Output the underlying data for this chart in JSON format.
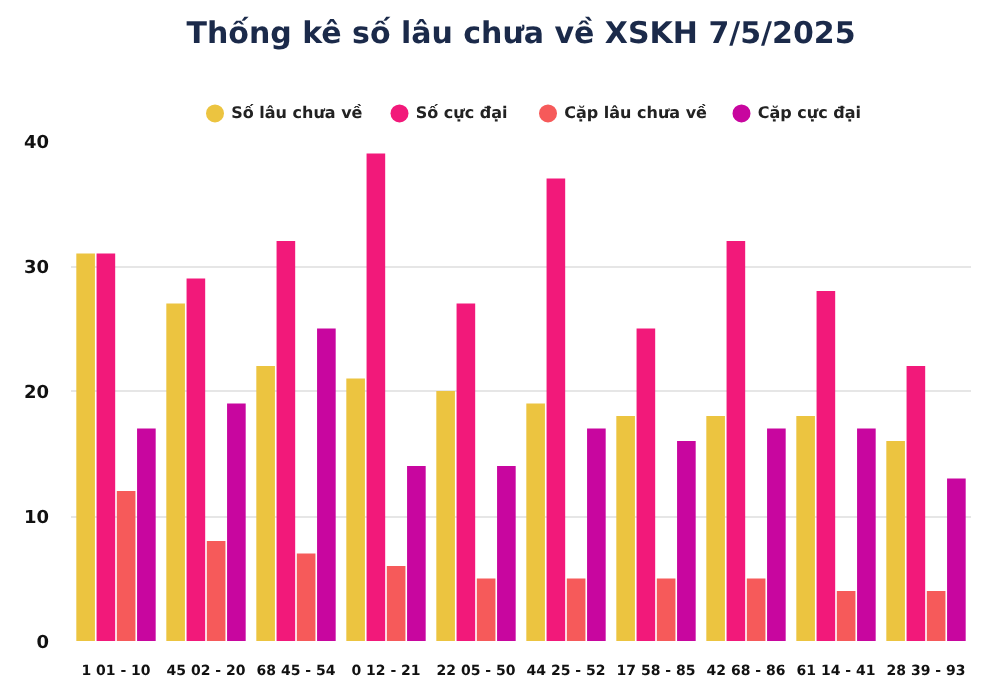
{
  "chart_data": {
    "type": "bar",
    "title": "Thống kê số lâu chưa về XSKH 7/5/2025",
    "categories": [
      "1 01 - 10",
      "45 02 - 20",
      "68 45 - 54",
      "0 12 - 21",
      "22 05 - 50",
      "44 25 - 52",
      "17 58 - 85",
      "42 68 - 86",
      "61 14 - 41",
      "28 39 - 93"
    ],
    "series": [
      {
        "name": "Số lâu chưa về",
        "color": "#ecc440",
        "values": [
          31,
          27,
          22,
          21,
          20,
          19,
          18,
          18,
          18,
          16
        ]
      },
      {
        "name": "Số cực đại",
        "color": "#f2197a",
        "values": [
          31,
          29,
          32,
          39,
          27,
          37,
          25,
          32,
          28,
          22
        ]
      },
      {
        "name": "Cặp lâu chưa về",
        "color": "#f65a5a",
        "values": [
          12,
          8,
          7,
          6,
          5,
          5,
          5,
          5,
          4,
          4
        ]
      },
      {
        "name": "Cặp cực đại",
        "color": "#c8069f",
        "values": [
          17,
          19,
          25,
          14,
          14,
          17,
          16,
          17,
          17,
          13
        ]
      }
    ],
    "ylim": [
      0,
      40
    ],
    "yticks": [
      0,
      10,
      20,
      30,
      40
    ],
    "grid": "y",
    "legend": "top"
  }
}
